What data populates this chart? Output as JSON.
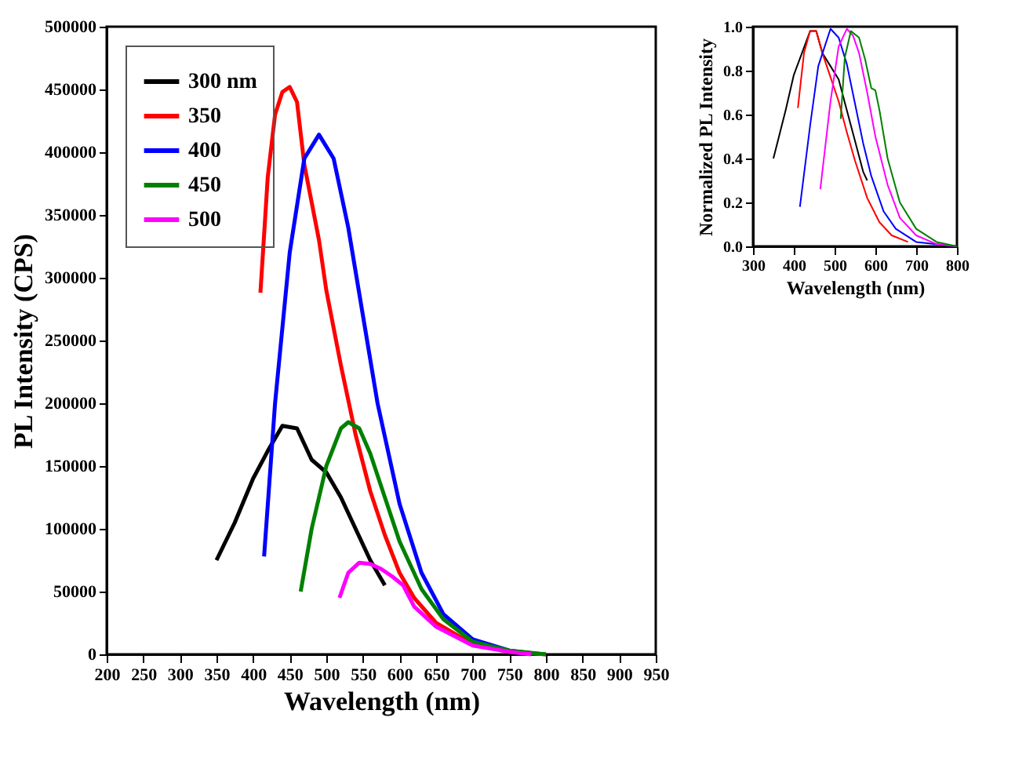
{
  "chart_data": [
    {
      "type": "line",
      "xlabel": "Wavelength (nm)",
      "ylabel": "PL Intensity (CPS)",
      "xlim": [
        200,
        950
      ],
      "ylim": [
        0,
        500000
      ],
      "xticks": [
        200,
        250,
        300,
        350,
        400,
        450,
        500,
        550,
        600,
        650,
        700,
        750,
        800,
        850,
        900,
        950
      ],
      "yticks": [
        0,
        50000,
        100000,
        150000,
        200000,
        250000,
        300000,
        350000,
        400000,
        450000,
        500000
      ],
      "legend": "top left",
      "grid": false,
      "series": [
        {
          "name": "300 nm",
          "color": "#000000",
          "x": [
            350,
            375,
            400,
            420,
            440,
            460,
            480,
            500,
            520,
            540,
            560,
            580
          ],
          "values": [
            75000,
            105000,
            140000,
            162000,
            182000,
            180000,
            155000,
            145000,
            125000,
            100000,
            75000,
            55000
          ]
        },
        {
          "name": "350",
          "color": "#ff0000",
          "x": [
            410,
            420,
            430,
            440,
            450,
            460,
            470,
            480,
            490,
            500,
            520,
            540,
            560,
            580,
            600,
            620,
            650,
            700,
            750,
            800
          ],
          "values": [
            288000,
            380000,
            430000,
            448000,
            452000,
            440000,
            390000,
            360000,
            330000,
            290000,
            230000,
            175000,
            130000,
            95000,
            65000,
            45000,
            25000,
            8000,
            2000,
            0
          ]
        },
        {
          "name": "400",
          "color": "#0000ff",
          "x": [
            415,
            430,
            450,
            470,
            490,
            510,
            530,
            550,
            570,
            600,
            630,
            660,
            700,
            750,
            780
          ],
          "values": [
            78000,
            200000,
            320000,
            395000,
            414000,
            395000,
            340000,
            270000,
            200000,
            120000,
            65000,
            32000,
            12000,
            3000,
            1000
          ]
        },
        {
          "name": "450",
          "color": "#008000",
          "x": [
            465,
            480,
            500,
            520,
            530,
            545,
            560,
            580,
            600,
            630,
            660,
            700,
            750,
            800
          ],
          "values": [
            50000,
            100000,
            150000,
            180000,
            185000,
            180000,
            160000,
            125000,
            90000,
            52000,
            28000,
            10000,
            3000,
            0
          ]
        },
        {
          "name": "500",
          "color": "#ff00ff",
          "x": [
            518,
            530,
            545,
            560,
            575,
            590,
            605,
            620,
            650,
            700,
            750,
            780
          ],
          "values": [
            45000,
            65000,
            73000,
            72000,
            68000,
            62000,
            55000,
            38000,
            22000,
            7000,
            2000,
            0
          ]
        }
      ]
    },
    {
      "type": "line",
      "xlabel": "Wavelength (nm)",
      "ylabel": "Normalized PL Intensity",
      "xlim": [
        300,
        800
      ],
      "ylim": [
        0,
        1.0
      ],
      "xticks": [
        300,
        400,
        500,
        600,
        700,
        800
      ],
      "yticks": [
        {
          "value": 0,
          "label": "0.0"
        },
        0.2,
        0.4,
        0.6,
        0.8,
        {
          "value": 1,
          "label": "1.0"
        }
      ],
      "grid": false,
      "series": [
        {
          "color": "#000000",
          "x": [
            350,
            380,
            400,
            420,
            440,
            455,
            470,
            490,
            510,
            530,
            550,
            570,
            580
          ],
          "values": [
            0.4,
            0.62,
            0.78,
            0.88,
            0.98,
            0.98,
            0.88,
            0.82,
            0.76,
            0.62,
            0.48,
            0.34,
            0.3
          ]
        },
        {
          "color": "#ff0000",
          "x": [
            410,
            425,
            440,
            455,
            470,
            490,
            510,
            530,
            550,
            580,
            610,
            640,
            680
          ],
          "values": [
            0.63,
            0.88,
            0.98,
            0.98,
            0.88,
            0.77,
            0.66,
            0.52,
            0.39,
            0.22,
            0.11,
            0.05,
            0.02
          ]
        },
        {
          "color": "#0000ff",
          "x": [
            415,
            440,
            460,
            490,
            510,
            530,
            550,
            570,
            590,
            620,
            650,
            700,
            750,
            800
          ],
          "values": [
            0.18,
            0.55,
            0.82,
            0.99,
            0.95,
            0.83,
            0.65,
            0.47,
            0.32,
            0.16,
            0.08,
            0.02,
            0.01,
            0.0
          ]
        },
        {
          "color": "#ff00ff",
          "x": [
            465,
            490,
            510,
            530,
            545,
            560,
            580,
            600,
            630,
            660,
            700,
            750,
            800
          ],
          "values": [
            0.26,
            0.66,
            0.91,
            0.99,
            0.96,
            0.88,
            0.7,
            0.5,
            0.28,
            0.13,
            0.05,
            0.01,
            0.0
          ]
        },
        {
          "color": "#008000",
          "x": [
            515,
            525,
            540,
            560,
            575,
            590,
            600,
            610,
            630,
            660,
            700,
            750,
            800
          ],
          "values": [
            0.58,
            0.86,
            0.98,
            0.95,
            0.85,
            0.72,
            0.71,
            0.62,
            0.4,
            0.2,
            0.08,
            0.02,
            0.0
          ]
        }
      ]
    }
  ]
}
